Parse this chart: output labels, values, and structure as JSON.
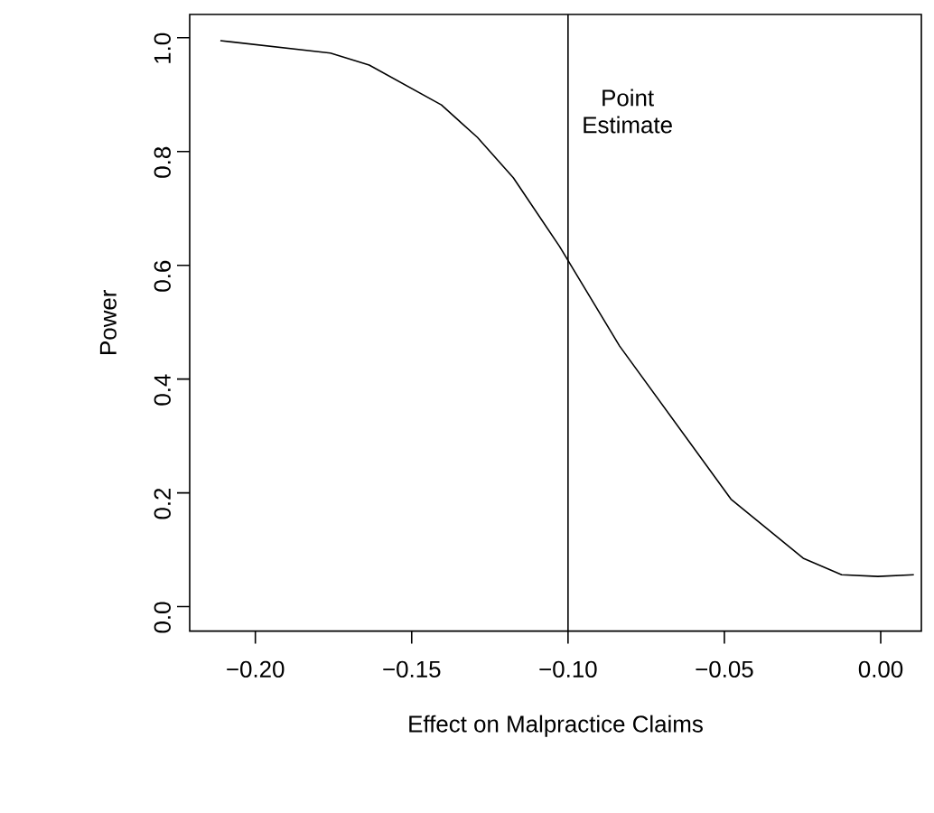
{
  "chart_data": {
    "type": "line",
    "xlabel": "Effect on Malpractice Claims",
    "ylabel": "Power",
    "x": [
      -0.2112,
      -0.176,
      -0.1636,
      -0.1405,
      -0.129,
      -0.1175,
      -0.1027,
      -0.0835,
      -0.0479,
      -0.0248,
      -0.0125,
      -0.0009,
      0.0106
    ],
    "series": [
      {
        "color": "#000000",
        "values": [
          0.995,
          0.973,
          0.952,
          0.882,
          0.825,
          0.754,
          0.633,
          0.458,
          0.189,
          0.085,
          0.056,
          0.053,
          0.056
        ]
      }
    ],
    "xlim": [
      -0.221,
      0.013
    ],
    "ylim": [
      -0.043,
      1.041
    ],
    "xticks": [
      {
        "value": -0.2,
        "label": "−0.20"
      },
      {
        "value": -0.15,
        "label": "−0.15"
      },
      {
        "value": -0.1,
        "label": "−0.10"
      },
      {
        "value": -0.05,
        "label": "−0.05"
      },
      {
        "value": 0,
        "label": "0.00"
      }
    ],
    "yticks": [
      {
        "value": 0,
        "label": "0.0"
      },
      {
        "value": 0.2,
        "label": "0.2"
      },
      {
        "value": 0.4,
        "label": "0.4"
      },
      {
        "value": 0.6,
        "label": "0.6"
      },
      {
        "value": 0.8,
        "label": "0.8"
      },
      {
        "value": 1,
        "label": "1.0"
      }
    ],
    "ref_lines": [
      {
        "axis": "x",
        "value": -0.1,
        "label": "Point Estimate",
        "color": "#000000"
      }
    ],
    "grid": false,
    "marker": "none",
    "line_style": "solid"
  }
}
